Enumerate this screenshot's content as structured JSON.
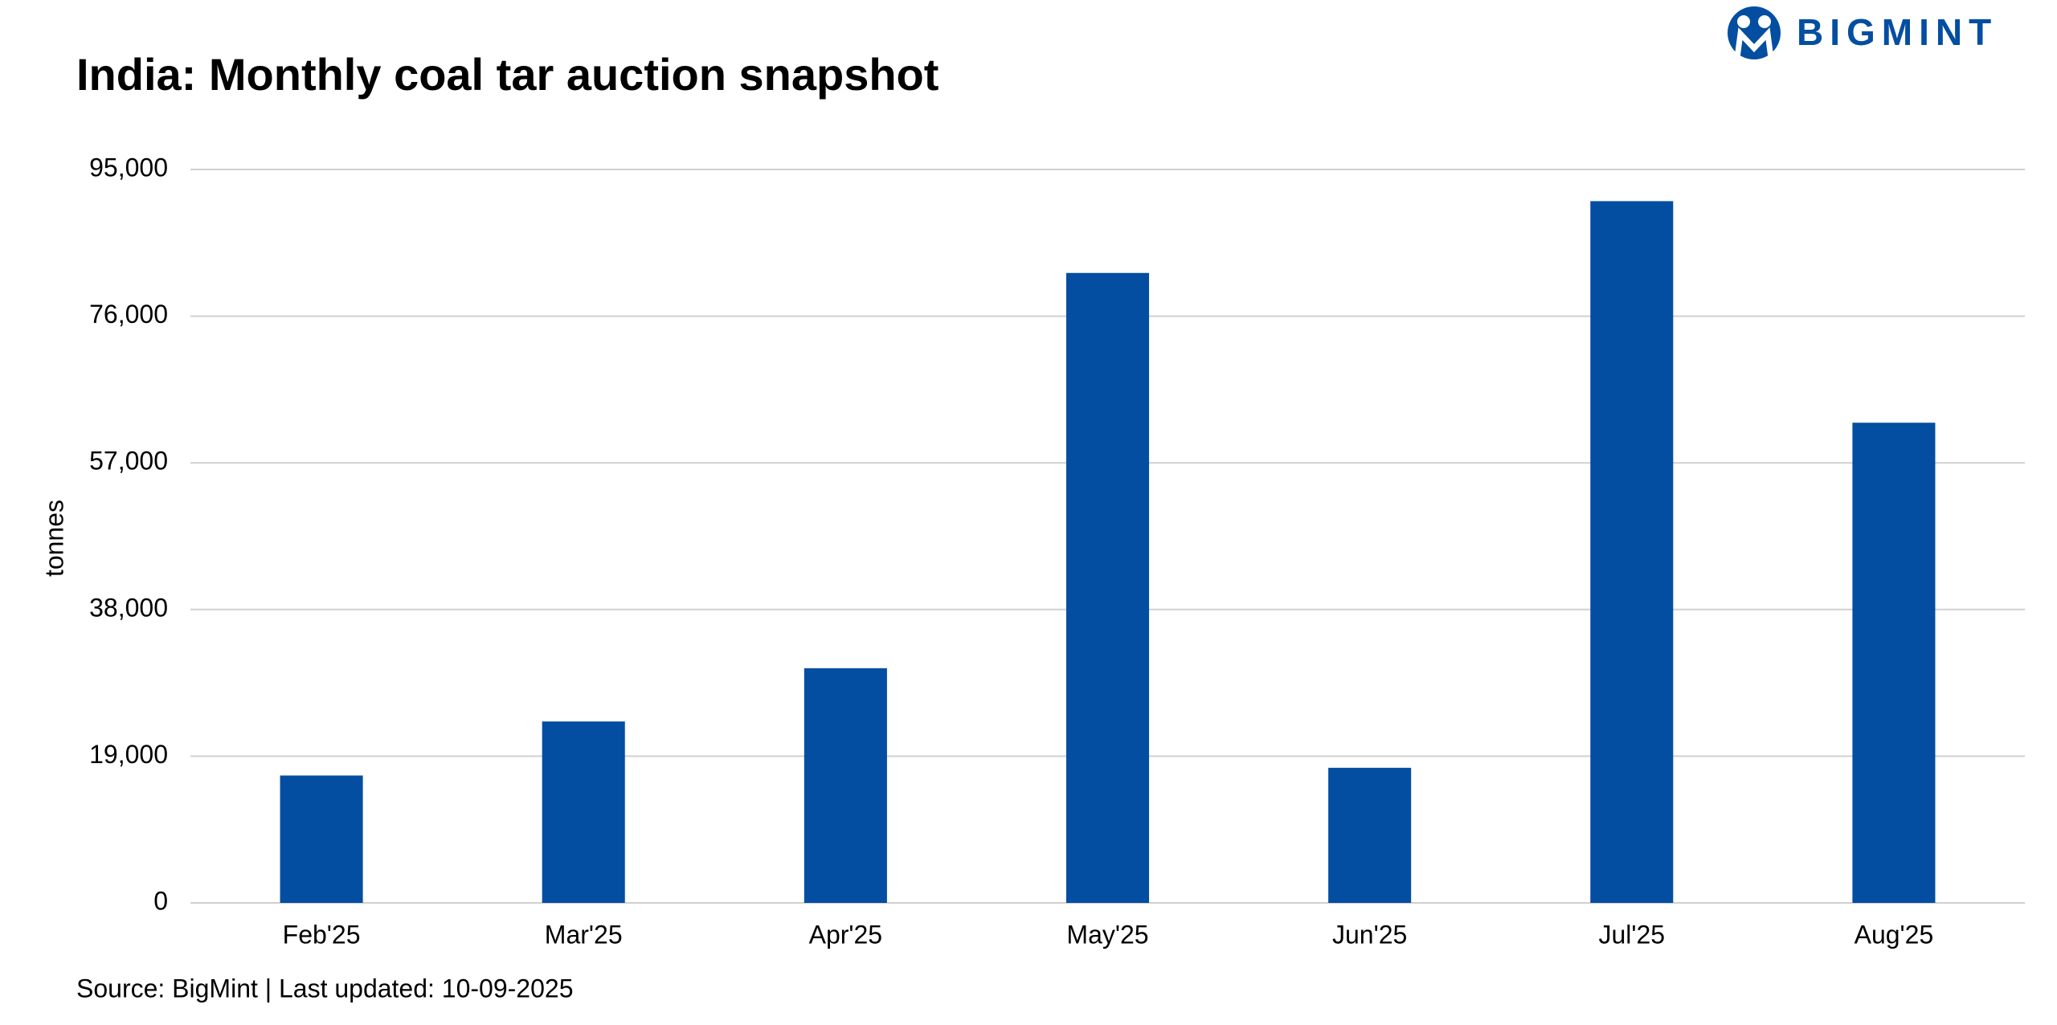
{
  "brand": "BIGMINT",
  "chart_data": {
    "type": "bar",
    "title": "India: Monthly coal tar auction snapshot",
    "y_label": "tonnes",
    "categories": [
      "Feb'25",
      "Mar'25",
      "Apr'25",
      "May'25",
      "Jun'25",
      "Jul'25",
      "Aug'25"
    ],
    "values": [
      16500,
      23500,
      30400,
      81600,
      17500,
      90900,
      62200
    ],
    "color": "#044ea1",
    "ylim": [
      0,
      95000
    ],
    "yticks": [
      0,
      {
        "value": 19000,
        "label": "19,000"
      },
      {
        "value": 38000,
        "label": "38,000"
      },
      {
        "value": 57000,
        "label": "57,000"
      },
      {
        "value": 76000,
        "label": "76,000"
      },
      {
        "value": 95000,
        "label": "95,000"
      }
    ],
    "grid": true,
    "source": "Source: BigMint | Last updated: 10-09-2025"
  }
}
